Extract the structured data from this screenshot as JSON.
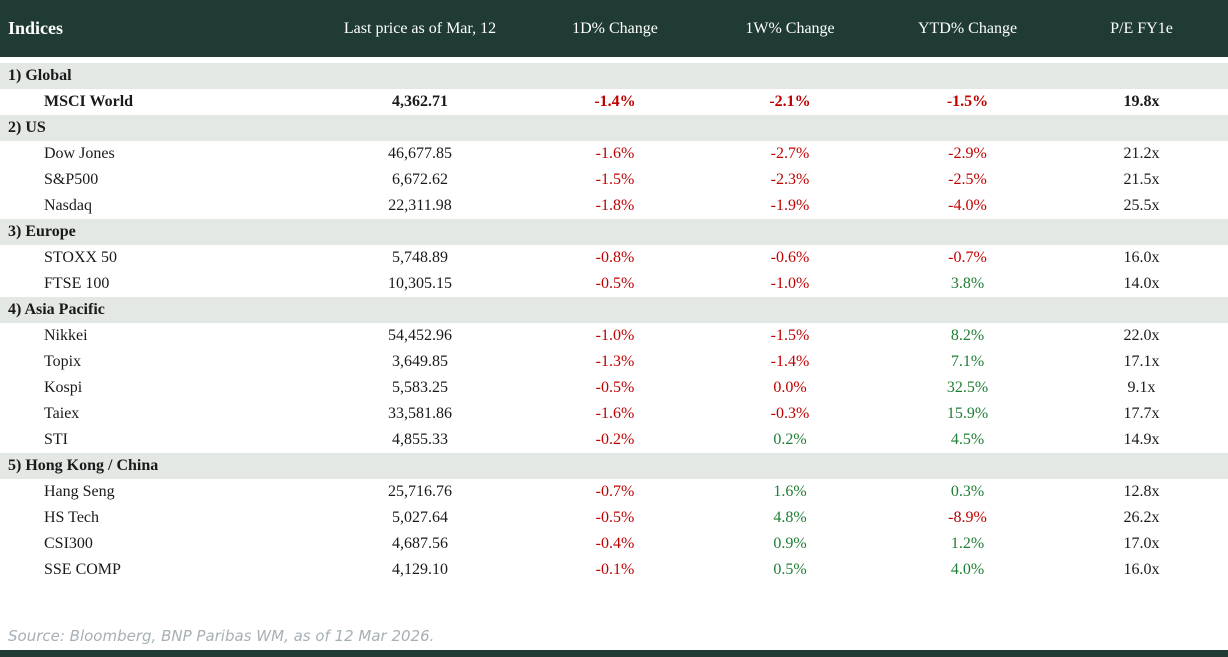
{
  "colors": {
    "header_bg": "#1f3b33",
    "section_bg": "#e4e8e4",
    "negative": "#c00000",
    "positive": "#1e7e34",
    "text": "#1a1a1a",
    "source_text": "#a6b0b5"
  },
  "table": {
    "columns": [
      "Indices",
      "Last price as of Mar, 12",
      "1D% Change",
      "1W% Change",
      "YTD% Change",
      "P/E FY1e"
    ],
    "sections": [
      {
        "label": "1) Global",
        "rows": [
          {
            "name": "MSCI World",
            "bold": true,
            "price": "4,362.71",
            "changes": [
              {
                "text": "-1.4%",
                "tone": "negative"
              },
              {
                "text": "-2.1%",
                "tone": "negative"
              },
              {
                "text": "-1.5%",
                "tone": "negative"
              }
            ],
            "pe": "19.8x"
          }
        ]
      },
      {
        "label": "2) US",
        "rows": [
          {
            "name": "Dow Jones",
            "price": "46,677.85",
            "changes": [
              {
                "text": "-1.6%",
                "tone": "negative"
              },
              {
                "text": "-2.7%",
                "tone": "negative"
              },
              {
                "text": "-2.9%",
                "tone": "negative"
              }
            ],
            "pe": "21.2x"
          },
          {
            "name": "S&P500",
            "price": "6,672.62",
            "changes": [
              {
                "text": "-1.5%",
                "tone": "negative"
              },
              {
                "text": "-2.3%",
                "tone": "negative"
              },
              {
                "text": "-2.5%",
                "tone": "negative"
              }
            ],
            "pe": "21.5x"
          },
          {
            "name": "Nasdaq",
            "price": "22,311.98",
            "changes": [
              {
                "text": "-1.8%",
                "tone": "negative"
              },
              {
                "text": "-1.9%",
                "tone": "negative"
              },
              {
                "text": "-4.0%",
                "tone": "negative"
              }
            ],
            "pe": "25.5x"
          }
        ]
      },
      {
        "label": "3) Europe",
        "rows": [
          {
            "name": "STOXX 50",
            "price": "5,748.89",
            "changes": [
              {
                "text": "-0.8%",
                "tone": "negative"
              },
              {
                "text": "-0.6%",
                "tone": "negative"
              },
              {
                "text": "-0.7%",
                "tone": "negative"
              }
            ],
            "pe": "16.0x"
          },
          {
            "name": "FTSE 100",
            "price": "10,305.15",
            "changes": [
              {
                "text": "-0.5%",
                "tone": "negative"
              },
              {
                "text": "-1.0%",
                "tone": "negative"
              },
              {
                "text": "3.8%",
                "tone": "positive"
              }
            ],
            "pe": "14.0x"
          }
        ]
      },
      {
        "label": "4) Asia Pacific",
        "rows": [
          {
            "name": "Nikkei",
            "price": "54,452.96",
            "changes": [
              {
                "text": "-1.0%",
                "tone": "negative"
              },
              {
                "text": "-1.5%",
                "tone": "negative"
              },
              {
                "text": "8.2%",
                "tone": "positive"
              }
            ],
            "pe": "22.0x"
          },
          {
            "name": "Topix",
            "price": "3,649.85",
            "changes": [
              {
                "text": "-1.3%",
                "tone": "negative"
              },
              {
                "text": "-1.4%",
                "tone": "negative"
              },
              {
                "text": "7.1%",
                "tone": "positive"
              }
            ],
            "pe": "17.1x"
          },
          {
            "name": "Kospi",
            "price": "5,583.25",
            "changes": [
              {
                "text": "-0.5%",
                "tone": "negative"
              },
              {
                "text": "0.0%",
                "tone": "negative"
              },
              {
                "text": "32.5%",
                "tone": "positive"
              }
            ],
            "pe": "9.1x"
          },
          {
            "name": "Taiex",
            "price": "33,581.86",
            "changes": [
              {
                "text": "-1.6%",
                "tone": "negative"
              },
              {
                "text": "-0.3%",
                "tone": "negative"
              },
              {
                "text": "15.9%",
                "tone": "positive"
              }
            ],
            "pe": "17.7x"
          },
          {
            "name": "STI",
            "price": "4,855.33",
            "changes": [
              {
                "text": "-0.2%",
                "tone": "negative"
              },
              {
                "text": "0.2%",
                "tone": "positive"
              },
              {
                "text": "4.5%",
                "tone": "positive"
              }
            ],
            "pe": "14.9x"
          }
        ]
      },
      {
        "label": "5) Hong Kong / China",
        "rows": [
          {
            "name": "Hang Seng",
            "price": "25,716.76",
            "changes": [
              {
                "text": "-0.7%",
                "tone": "negative"
              },
              {
                "text": "1.6%",
                "tone": "positive"
              },
              {
                "text": "0.3%",
                "tone": "positive"
              }
            ],
            "pe": "12.8x"
          },
          {
            "name": "HS Tech",
            "price": "5,027.64",
            "changes": [
              {
                "text": "-0.5%",
                "tone": "negative"
              },
              {
                "text": "4.8%",
                "tone": "positive"
              },
              {
                "text": "-8.9%",
                "tone": "negative"
              }
            ],
            "pe": "26.2x"
          },
          {
            "name": "CSI300",
            "price": "4,687.56",
            "changes": [
              {
                "text": "-0.4%",
                "tone": "negative"
              },
              {
                "text": "0.9%",
                "tone": "positive"
              },
              {
                "text": "1.2%",
                "tone": "positive"
              }
            ],
            "pe": "17.0x"
          },
          {
            "name": "SSE COMP",
            "price": "4,129.10",
            "changes": [
              {
                "text": "-0.1%",
                "tone": "negative"
              },
              {
                "text": "0.5%",
                "tone": "positive"
              },
              {
                "text": "4.0%",
                "tone": "positive"
              }
            ],
            "pe": "16.0x"
          }
        ]
      }
    ]
  },
  "footer": {
    "source_note": "Source: Bloomberg, BNP Paribas WM, as of 12 Mar 2026."
  }
}
